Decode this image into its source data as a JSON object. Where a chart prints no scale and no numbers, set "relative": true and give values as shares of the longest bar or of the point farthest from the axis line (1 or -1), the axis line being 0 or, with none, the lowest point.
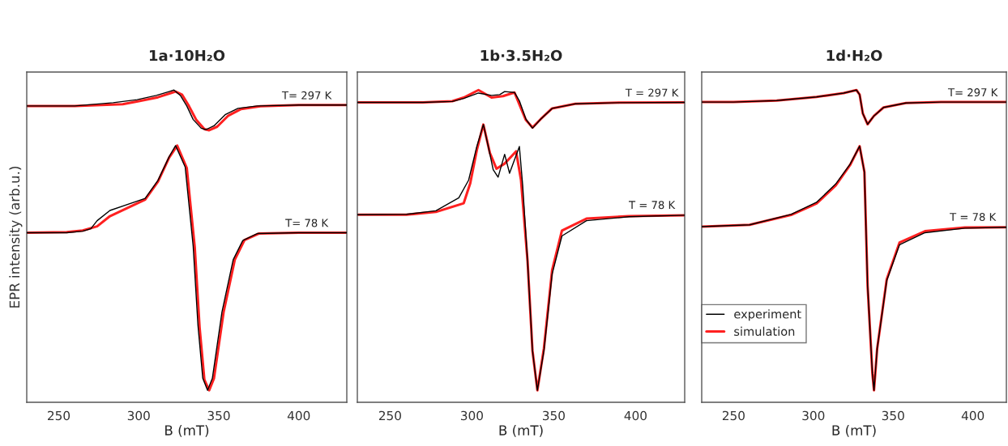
{
  "chart_data": [
    {
      "type": "line",
      "title": "1a·10H₂O",
      "xlabel": "B (mT)",
      "ylabel": "EPR intensity (arb.u.)",
      "relative": true,
      "xlim": [
        230,
        430
      ],
      "xticks": [
        250,
        300,
        350,
        400
      ],
      "tick_labels": "x",
      "grid": false,
      "legend": false,
      "series": [
        {
          "color": "#000000",
          "x": [
            230,
            260,
            284,
            299,
            311,
            319,
            322,
            326,
            330,
            334,
            339,
            342,
            347,
            354,
            362,
            374,
            400,
            430
          ],
          "values": [
            0.947,
            0.947,
            0.958,
            0.968,
            0.982,
            0.995,
            1,
            0.982,
            0.947,
            0.902,
            0.873,
            0.868,
            0.881,
            0.918,
            0.939,
            0.947,
            0.95,
            0.95
          ]
        },
        {
          "color": "#ff2020",
          "x": [
            230,
            260,
            290,
            300,
            312,
            320,
            323,
            327,
            331,
            336,
            341,
            344,
            349,
            356,
            364,
            376,
            400,
            430
          ],
          "values": [
            0.947,
            0.947,
            0.953,
            0.963,
            0.976,
            0.99,
            0.995,
            0.985,
            0.95,
            0.9,
            0.87,
            0.866,
            0.878,
            0.915,
            0.937,
            0.946,
            0.95,
            0.95
          ]
        },
        {
          "color": "#000000",
          "x": [
            230,
            255,
            265,
            270,
            274,
            282,
            304,
            312,
            319,
            323,
            329,
            334,
            337,
            340,
            343,
            346,
            352,
            359,
            365,
            374,
            400,
            430
          ],
          "values": [
            0.525,
            0.525,
            0.53,
            0.538,
            0.565,
            0.599,
            0.639,
            0.699,
            0.778,
            0.815,
            0.744,
            0.48,
            0.216,
            0.04,
            0,
            0.04,
            0.261,
            0.435,
            0.499,
            0.522,
            0.525,
            0.525
          ]
        },
        {
          "color": "#ff2020",
          "x": [
            230,
            255,
            265,
            274,
            282,
            304,
            312,
            319,
            324,
            330,
            335,
            338,
            341,
            344,
            347,
            353,
            360,
            366,
            375,
            400,
            430
          ],
          "values": [
            0.525,
            0.527,
            0.532,
            0.546,
            0.58,
            0.635,
            0.695,
            0.775,
            0.815,
            0.74,
            0.475,
            0.21,
            0.035,
            0,
            0.04,
            0.26,
            0.435,
            0.5,
            0.522,
            0.525,
            0.525
          ]
        }
      ],
      "annotations": [
        {
          "text": "T= 297 K",
          "x": 405,
          "y": 0.95
        },
        {
          "text": "T= 78 K",
          "x": 405,
          "y": 0.525
        }
      ]
    },
    {
      "type": "line",
      "title": "1b·3.5H₂O",
      "xlabel": "B (mT)",
      "relative": true,
      "xlim": [
        230,
        430
      ],
      "xticks": [
        250,
        300,
        350,
        400
      ],
      "tick_labels": "x",
      "grid": false,
      "legend": false,
      "series": [
        {
          "color": "#000000",
          "x": [
            230,
            270,
            288,
            295,
            304,
            312,
            317,
            320,
            326,
            329,
            333,
            337,
            342,
            349,
            363,
            390,
            430
          ],
          "values": [
            0.959,
            0.959,
            0.962,
            0.972,
            0.99,
            0.982,
            0.985,
            0.995,
            0.992,
            0.964,
            0.903,
            0.873,
            0.903,
            0.939,
            0.954,
            0.958,
            0.959
          ]
        },
        {
          "color": "#ff2020",
          "x": [
            230,
            270,
            288,
            295,
            304,
            312,
            319,
            326,
            330,
            333,
            337,
            342,
            349,
            363,
            390,
            430
          ],
          "values": [
            0.959,
            0.959,
            0.963,
            0.975,
            1,
            0.975,
            0.98,
            0.992,
            0.939,
            0.9,
            0.875,
            0.903,
            0.939,
            0.954,
            0.958,
            0.959
          ]
        },
        {
          "color": "#000000",
          "x": [
            230,
            260,
            278,
            292,
            298,
            303,
            307,
            310,
            313,
            316,
            320,
            323,
            329,
            331,
            334,
            337,
            340,
            344,
            349,
            355,
            370,
            396,
            430
          ],
          "values": [
            0.585,
            0.586,
            0.598,
            0.641,
            0.7,
            0.812,
            0.885,
            0.812,
            0.735,
            0.71,
            0.786,
            0.723,
            0.812,
            0.684,
            0.43,
            0.132,
            0,
            0.132,
            0.387,
            0.514,
            0.565,
            0.578,
            0.583
          ]
        },
        {
          "color": "#ff2020",
          "x": [
            230,
            260,
            278,
            295,
            299,
            303,
            307,
            311,
            315,
            320,
            327,
            330,
            334,
            337,
            340,
            344,
            349,
            355,
            370,
            396,
            430
          ],
          "values": [
            0.585,
            0.585,
            0.594,
            0.623,
            0.69,
            0.8,
            0.885,
            0.79,
            0.738,
            0.755,
            0.796,
            0.7,
            0.43,
            0.132,
            0,
            0.14,
            0.4,
            0.532,
            0.572,
            0.58,
            0.583
          ]
        }
      ],
      "annotations": [
        {
          "text": "T = 297 K",
          "x": 410,
          "y": 0.959
        },
        {
          "text": "T = 78 K",
          "x": 410,
          "y": 0.585
        }
      ]
    },
    {
      "type": "line",
      "title": "1d·H₂O",
      "xlabel": "B (mT)",
      "relative": true,
      "xlim": [
        230,
        421
      ],
      "xticks": [
        250,
        300,
        350,
        400
      ],
      "tick_labels": "x",
      "grid": false,
      "legend": "bottom left",
      "series": [
        {
          "name": "experiment",
          "color": "#000000",
          "x": [
            230,
            250,
            277,
            302,
            319,
            327,
            329,
            331,
            334,
            338,
            344,
            358,
            380,
            421
          ],
          "values": [
            0.96,
            0.96,
            0.965,
            0.977,
            0.99,
            1,
            0.985,
            0.922,
            0.886,
            0.914,
            0.942,
            0.957,
            0.96,
            0.96
          ]
        },
        {
          "name": "simulation",
          "color": "#ff2020",
          "x": [
            230,
            250,
            277,
            302,
            319,
            327,
            329,
            331,
            334,
            338,
            344,
            358,
            380,
            421
          ],
          "values": [
            0.96,
            0.96,
            0.965,
            0.977,
            0.99,
            1,
            0.985,
            0.922,
            0.886,
            0.914,
            0.942,
            0.957,
            0.96,
            0.96
          ]
        },
        {
          "color": "#000000",
          "x": [
            230,
            260,
            286,
            302,
            314,
            323,
            329,
            332,
            334,
            337,
            338,
            340,
            346,
            354,
            370,
            395,
            421
          ],
          "values": [
            0.545,
            0.551,
            0.586,
            0.626,
            0.687,
            0.753,
            0.813,
            0.727,
            0.348,
            0.056,
            0,
            0.139,
            0.366,
            0.485,
            0.525,
            0.54,
            0.543
          ]
        },
        {
          "color": "#ff2020",
          "x": [
            230,
            260,
            286,
            302,
            314,
            323,
            329,
            332,
            334,
            337,
            338,
            340,
            346,
            354,
            370,
            395,
            421
          ],
          "values": [
            0.545,
            0.551,
            0.584,
            0.622,
            0.682,
            0.75,
            0.813,
            0.727,
            0.348,
            0.056,
            0,
            0.139,
            0.37,
            0.492,
            0.53,
            0.542,
            0.543
          ]
        }
      ],
      "annotations": [
        {
          "text": "T= 297 K",
          "x": 400,
          "y": 0.96
        },
        {
          "text": "T = 78 K",
          "x": 400,
          "y": 0.545
        }
      ]
    }
  ]
}
